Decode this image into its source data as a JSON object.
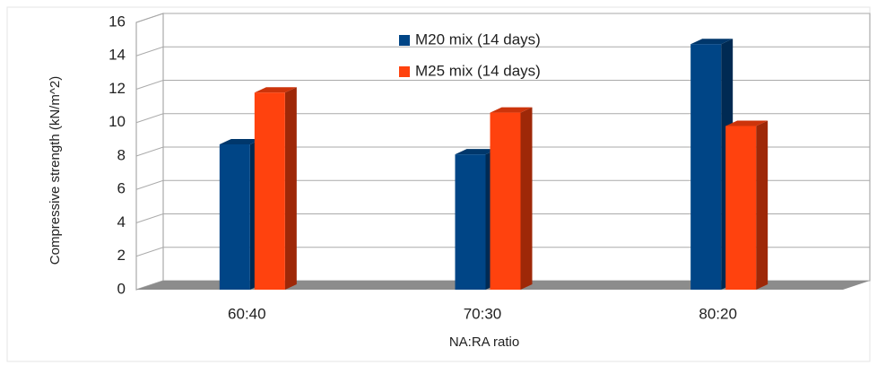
{
  "chart_data": {
    "type": "bar3d",
    "categories": [
      "60:40",
      "70:30",
      "80:20"
    ],
    "series": [
      {
        "name": "M20 mix (14 days)",
        "color": "#004586",
        "values": [
          8.7,
          8.1,
          14.7
        ]
      },
      {
        "name": "M25 mix (14 days)",
        "color": "#ff420e",
        "values": [
          11.8,
          10.6,
          9.8
        ]
      }
    ],
    "xlabel": "NA:RA ratio",
    "ylabel": "Compressive strength (kN/m^2)",
    "ylim": [
      0,
      16
    ],
    "yticks": [
      0,
      2,
      4,
      6,
      8,
      10,
      12,
      14,
      16
    ],
    "grid": true
  }
}
